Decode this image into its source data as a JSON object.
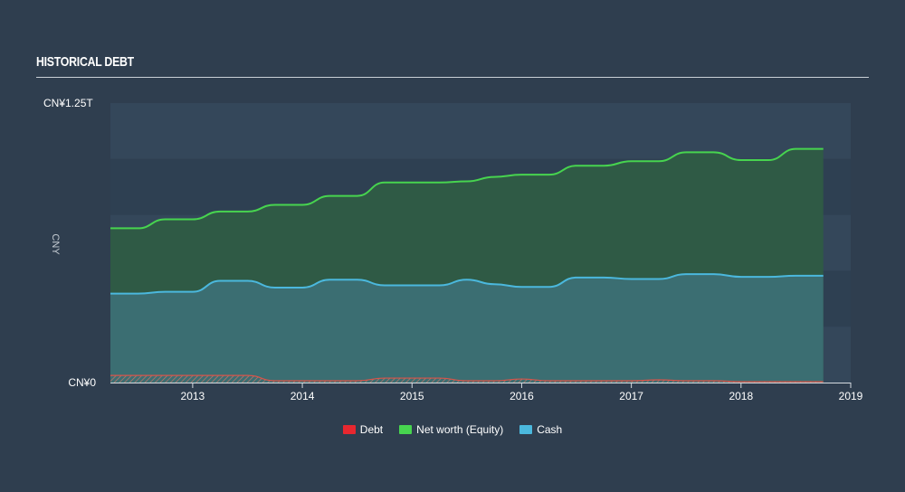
{
  "page": {
    "title": "HISTORICAL DEBT"
  },
  "chart_data": {
    "type": "area",
    "title": "HISTORICAL DEBT",
    "ylabel": "CNY",
    "ylim": [
      0,
      1.25
    ],
    "y_unit": "trillion CNY",
    "y_ticks": [
      {
        "value": 0,
        "label": "CN¥0"
      },
      {
        "value": 1.25,
        "label": "CN¥1.25T"
      }
    ],
    "xlim": [
      2012.25,
      2019.0
    ],
    "x_ticks": [
      {
        "value": 2013,
        "label": "2013"
      },
      {
        "value": 2014,
        "label": "2014"
      },
      {
        "value": 2015,
        "label": "2015"
      },
      {
        "value": 2016,
        "label": "2016"
      },
      {
        "value": 2017,
        "label": "2017"
      },
      {
        "value": 2018,
        "label": "2018"
      },
      {
        "value": 2019,
        "label": "2019"
      }
    ],
    "x": [
      2012.25,
      2012.5,
      2012.75,
      2013.0,
      2013.25,
      2013.5,
      2013.75,
      2014.0,
      2014.25,
      2014.5,
      2014.75,
      2015.0,
      2015.25,
      2015.5,
      2015.75,
      2016.0,
      2016.25,
      2016.5,
      2016.75,
      2017.0,
      2017.25,
      2017.5,
      2017.75,
      2018.0,
      2018.25,
      2018.5,
      2018.75
    ],
    "series": [
      {
        "name": "Debt",
        "color": "#e8272f",
        "values": [
          0.032,
          0.032,
          0.032,
          0.032,
          0.032,
          0.032,
          0.008,
          0.008,
          0.008,
          0.008,
          0.02,
          0.02,
          0.02,
          0.008,
          0.008,
          0.016,
          0.008,
          0.008,
          0.008,
          0.008,
          0.012,
          0.008,
          0.008,
          0.004,
          0.004,
          0.004,
          0.004
        ]
      },
      {
        "name": "Net worth (Equity)",
        "color": "#47d44f",
        "values": [
          0.69,
          0.69,
          0.73,
          0.73,
          0.765,
          0.765,
          0.795,
          0.795,
          0.835,
          0.835,
          0.895,
          0.895,
          0.895,
          0.9,
          0.92,
          0.93,
          0.93,
          0.97,
          0.97,
          0.99,
          0.99,
          1.03,
          1.03,
          0.995,
          0.995,
          1.045,
          1.045
        ]
      },
      {
        "name": "Cash",
        "color": "#4bb8dd",
        "values": [
          0.398,
          0.398,
          0.406,
          0.406,
          0.455,
          0.455,
          0.425,
          0.425,
          0.46,
          0.46,
          0.435,
          0.435,
          0.435,
          0.46,
          0.44,
          0.428,
          0.428,
          0.47,
          0.47,
          0.463,
          0.463,
          0.485,
          0.485,
          0.473,
          0.473,
          0.478,
          0.478
        ]
      }
    ],
    "legend_position": "bottom-center",
    "grid": true
  }
}
